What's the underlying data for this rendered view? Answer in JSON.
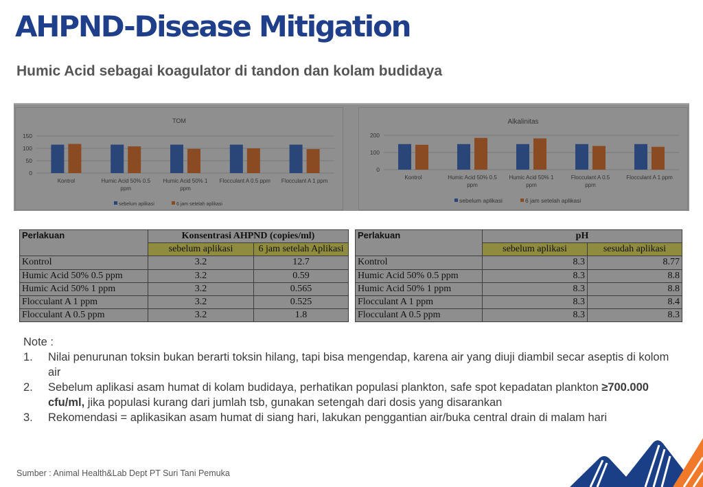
{
  "header": {
    "title": "AHPND-Disease Mitigation",
    "subtitle": "Humic Acid sebagai koagulator di tandon dan kolam budidaya"
  },
  "colors": {
    "title": "#1f3f8a",
    "series_before": "#2a4577",
    "series_after": "#8a4a22",
    "chart_bg": "#8f8f8f",
    "table_subheader": "#8f8c3f",
    "logo_blue": "#1a3f86",
    "logo_orange": "#f07a2a"
  },
  "chart_data": [
    {
      "type": "bar",
      "title": "TOM",
      "categories": [
        "Kontrol",
        "Humic Acid 50% 0.5 ppm",
        "Humic Acid 50% 1 ppm",
        "Flocculant A 0.5 ppm",
        "Flocculant A  1 ppm"
      ],
      "category_lines": [
        [
          "Kontrol"
        ],
        [
          "Humic Acid 50% 0.5",
          "ppm"
        ],
        [
          "Humic Acid 50% 1",
          "ppm"
        ],
        [
          "Flocculant A 0.5 ppm"
        ],
        [
          "Flocculant A  1 ppm"
        ]
      ],
      "series": [
        {
          "name": "sebelum aplikasi",
          "values": [
            115,
            115,
            115,
            115,
            115
          ]
        },
        {
          "name": "6 jam setelah aplikasi",
          "values": [
            118,
            108,
            98,
            100,
            97
          ]
        }
      ],
      "yticks": [
        0,
        50,
        100,
        150
      ],
      "ylim": [
        0,
        150
      ],
      "grid": true,
      "legend": "bottom",
      "xlabel": "",
      "ylabel": ""
    },
    {
      "type": "bar",
      "title": "Alkalinitas",
      "categories": [
        "Kontrol",
        "Humic Acid 50% 0.5 ppm",
        "Humic Acid 50% 1 ppm",
        "Flocculant A 0.5 ppm",
        "Flocculant A  1 ppm"
      ],
      "category_lines": [
        [
          "Kontrol"
        ],
        [
          "Humic Acid 50% 0.5",
          "ppm"
        ],
        [
          "Humic Acid 50% 1",
          "ppm"
        ],
        [
          "Flocculant A 0.5",
          "ppm"
        ],
        [
          "Flocculant A  1 ppm"
        ]
      ],
      "series": [
        {
          "name": "sebelum aplikasi",
          "values": [
            149,
            149,
            149,
            149,
            149
          ]
        },
        {
          "name": "6 jam setelah aplikasi",
          "values": [
            145,
            185,
            182,
            138,
            133
          ]
        }
      ],
      "yticks": [
        0,
        100,
        200
      ],
      "ylim": [
        0,
        200
      ],
      "grid": true,
      "legend": "bottom",
      "xlabel": "",
      "ylabel": ""
    }
  ],
  "table_ahpnd": {
    "col1": "Perlakuan",
    "group_header": "Konsentrasi AHPND (copies/ml)",
    "sub_headers": [
      "sebelum aplikasi",
      "6 jam setelah Aplikasi"
    ],
    "rows": [
      {
        "label": "Kontrol",
        "before": "3.2",
        "after": "12.7"
      },
      {
        "label": "Humic Acid 50% 0.5 ppm",
        "before": "3.2",
        "after": "0.59"
      },
      {
        "label": "Humic Acid 50% 1 ppm",
        "before": "3.2",
        "after": "0.565"
      },
      {
        "label": "Flocculant A  1 ppm",
        "before": "3.2",
        "after": "0.525"
      },
      {
        "label": "Flocculant A 0.5 ppm",
        "before": "3.2",
        "after": "1.8"
      }
    ]
  },
  "table_ph": {
    "col1": "Perlakuan",
    "group_header": "pH",
    "sub_headers": [
      "sebelum aplikasi",
      "sesudah aplikasi"
    ],
    "rows": [
      {
        "label": "Kontrol",
        "before": "8.3",
        "after": "8.77"
      },
      {
        "label": "Humic Acid 50% 0.5 ppm",
        "before": "8.3",
        "after": "8.8"
      },
      {
        "label": "Humic Acid 50% 1 ppm",
        "before": "8.3",
        "after": "8.8"
      },
      {
        "label": "Flocculant A  1 ppm",
        "before": "8.3",
        "after": "8.4"
      },
      {
        "label": "Flocculant A 0.5 ppm",
        "before": "8.3",
        "after": "8.3"
      }
    ]
  },
  "notes": {
    "heading": "Note :",
    "items": [
      {
        "num": "1.",
        "text": "Nilai penurunan toksin bukan berarti toksin hilang, tapi bisa mengendap, karena air yang diuji diambil secar aseptis di kolom air"
      },
      {
        "num": "2.",
        "text_pre": "Sebelum aplikasi asam humat di kolam budidaya, perhatikan populasi plankton, safe spot kepadatan plankton ",
        "text_bold": "≥700.000 cfu/ml,",
        "text_post": " jika populasi kurang dari jumlah tsb, gunakan setengah dari dosis yang disarankan"
      },
      {
        "num": "3.",
        "text": "Rekomendasi = aplikasikan asam humat di siang hari, lakukan penggantian air/buka central drain di malam hari"
      }
    ]
  },
  "footer": {
    "source": "Sumber : Animal Health&Lab Dept PT Suri Tani Pemuka",
    "logo_icon": "company-logo-mountains-icon"
  }
}
